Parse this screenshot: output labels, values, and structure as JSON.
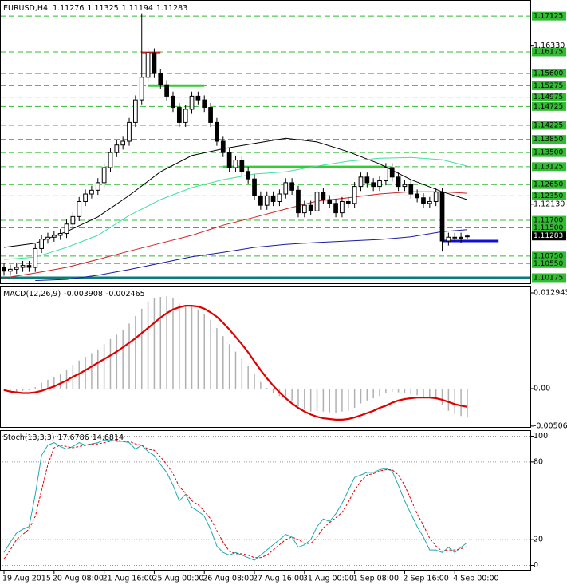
{
  "chart_data": [
    {
      "type": "candlestick",
      "title": "EURUSD,H4",
      "xlim": [
        -0.64,
        84.2
      ],
      "ylim": [
        1.1009,
        1.1751
      ],
      "candles": {
        "open": [
          1.1045,
          1.1035,
          1.104,
          1.1045,
          1.105,
          1.1045,
          1.1095,
          1.112,
          1.1125,
          1.113,
          1.1135,
          1.116,
          1.118,
          1.122,
          1.124,
          1.125,
          1.127,
          1.131,
          1.135,
          1.137,
          1.138,
          1.143,
          1.149,
          1.155,
          1.1615,
          1.156,
          1.153,
          1.15,
          1.147,
          1.143,
          1.1465,
          1.15,
          1.149,
          1.147,
          1.143,
          1.138,
          1.135,
          1.131,
          1.133,
          1.13,
          1.128,
          1.1235,
          1.121,
          1.1235,
          1.122,
          1.124,
          1.127,
          1.125,
          1.119,
          1.121,
          1.1195,
          1.1245,
          1.1225,
          1.1215,
          1.119,
          1.122,
          1.1215,
          1.126,
          1.1285,
          1.127,
          1.126,
          1.1275,
          1.131,
          1.1285,
          1.126,
          1.1265,
          1.124,
          1.123,
          1.1215,
          1.122,
          1.1245,
          1.1115,
          1.1125,
          1.1125,
          1.11276
        ],
        "high": [
          1.1057,
          1.1052,
          1.1057,
          1.1062,
          1.1062,
          1.1107,
          1.1132,
          1.1137,
          1.1142,
          1.1147,
          1.1172,
          1.1192,
          1.1232,
          1.1252,
          1.1262,
          1.1282,
          1.1322,
          1.1362,
          1.1382,
          1.1392,
          1.1442,
          1.1502,
          1.172,
          1.1627,
          1.1627,
          1.1572,
          1.1542,
          1.1512,
          1.1482,
          1.1477,
          1.1512,
          1.1512,
          1.1502,
          1.1482,
          1.1442,
          1.1392,
          1.1362,
          1.1342,
          1.1342,
          1.1312,
          1.1292,
          1.1247,
          1.1247,
          1.1247,
          1.1252,
          1.1282,
          1.1282,
          1.1262,
          1.1222,
          1.1222,
          1.1257,
          1.1257,
          1.1237,
          1.1227,
          1.1232,
          1.1232,
          1.1272,
          1.1297,
          1.1297,
          1.1282,
          1.1287,
          1.1322,
          1.1322,
          1.1297,
          1.1277,
          1.1277,
          1.1252,
          1.1242,
          1.1232,
          1.1257,
          1.1257,
          1.1137,
          1.1137,
          1.1137,
          1.11325
        ],
        "low": [
          1.1023,
          1.1023,
          1.1028,
          1.1033,
          1.1033,
          1.1033,
          1.1083,
          1.1108,
          1.1113,
          1.1118,
          1.1123,
          1.1148,
          1.1168,
          1.1208,
          1.1228,
          1.1238,
          1.1258,
          1.1298,
          1.1338,
          1.1358,
          1.1368,
          1.1418,
          1.1478,
          1.1538,
          1.1548,
          1.1518,
          1.1488,
          1.1458,
          1.1418,
          1.1418,
          1.1453,
          1.1478,
          1.1458,
          1.1418,
          1.1368,
          1.1338,
          1.1298,
          1.1298,
          1.1288,
          1.1268,
          1.1223,
          1.1198,
          1.1198,
          1.1208,
          1.1208,
          1.1228,
          1.1238,
          1.1178,
          1.1178,
          1.1183,
          1.1183,
          1.1213,
          1.1203,
          1.1178,
          1.1178,
          1.1203,
          1.1203,
          1.1248,
          1.1258,
          1.1248,
          1.1248,
          1.1263,
          1.1273,
          1.1248,
          1.1248,
          1.1228,
          1.1218,
          1.1203,
          1.1203,
          1.1208,
          1.1087,
          1.1103,
          1.1113,
          1.111,
          1.11194
        ],
        "close": [
          1.1035,
          1.104,
          1.1045,
          1.105,
          1.1045,
          1.1095,
          1.112,
          1.1125,
          1.113,
          1.1135,
          1.116,
          1.118,
          1.122,
          1.124,
          1.125,
          1.127,
          1.131,
          1.135,
          1.137,
          1.138,
          1.143,
          1.149,
          1.155,
          1.1615,
          1.156,
          1.153,
          1.15,
          1.147,
          1.143,
          1.1465,
          1.15,
          1.149,
          1.147,
          1.143,
          1.138,
          1.135,
          1.131,
          1.133,
          1.13,
          1.128,
          1.1235,
          1.121,
          1.1235,
          1.122,
          1.124,
          1.127,
          1.125,
          1.119,
          1.121,
          1.1195,
          1.1245,
          1.1225,
          1.1215,
          1.119,
          1.122,
          1.1215,
          1.126,
          1.1285,
          1.127,
          1.126,
          1.1275,
          1.131,
          1.1285,
          1.126,
          1.1265,
          1.124,
          1.123,
          1.1215,
          1.122,
          1.1245,
          1.1115,
          1.1125,
          1.1125,
          1.1122,
          1.11283
        ]
      },
      "up_color": "#ffffff",
      "down_color": "#000000",
      "ma_x": [
        0,
        5,
        10,
        15,
        20,
        25,
        30,
        35,
        40,
        45,
        50,
        55,
        60,
        65,
        70,
        74
      ],
      "series": [
        {
          "color": "#000000",
          "values": [
            1.1098,
            1.1109,
            1.114,
            1.1179,
            1.1236,
            1.1299,
            1.1342,
            1.136,
            1.1374,
            1.1388,
            1.1378,
            1.1352,
            1.132,
            1.1278,
            1.1246,
            1.1225
          ]
        },
        {
          "color": "#40e0a0",
          "values": [
            1.1066,
            1.1072,
            1.1098,
            1.113,
            1.1183,
            1.1225,
            1.1257,
            1.1278,
            1.1293,
            1.1299,
            1.1314,
            1.1327,
            1.1335,
            1.1337,
            1.1331,
            1.1314
          ]
        },
        {
          "color": "#cc2222",
          "values": [
            1.1017,
            1.103,
            1.1045,
            1.1066,
            1.1088,
            1.1109,
            1.113,
            1.1157,
            1.1178,
            1.12,
            1.1221,
            1.123,
            1.124,
            1.1246,
            1.1246,
            1.1242
          ]
        },
        {
          "color": "#1a1aa8",
          "values": [
            null,
            1.101,
            1.1013,
            1.1024,
            1.1039,
            1.1056,
            1.1073,
            1.1085,
            1.1098,
            1.1106,
            1.1111,
            1.1115,
            1.1119,
            1.1126,
            1.114,
            1.1145
          ]
        }
      ],
      "yticks": [
        {
          "value": 1.1633,
          "label": "1.16330"
        },
        {
          "value": 1.1213,
          "label": "1.12130"
        }
      ],
      "hlines": [
        1.17125,
        1.16175,
        {
          "value": 1.156,
          "label": "1.15600"
        },
        1.15275,
        1.14975,
        1.14725,
        1.14225,
        {
          "value": 1.1385,
          "label": "1.13850"
        },
        {
          "value": 1.135,
          "label": "1.13500"
        },
        1.13125,
        {
          "value": 1.1265,
          "label": "1.12650"
        },
        {
          "value": 1.1235,
          "label": "1.12350"
        },
        {
          "value": 1.117,
          "label": "1.11700"
        },
        {
          "value": 1.115,
          "label": "1.11500"
        },
        {
          "value": 1.1075,
          "label": "1.10750"
        },
        {
          "value": 1.1055,
          "label": "1.10550"
        },
        1.10175
      ],
      "hline_color": "#33bb33",
      "levels": [
        {
          "value": 1.10175,
          "color": "#0a7a7a",
          "start": -1,
          "end": 85
        },
        {
          "value": 1.1615,
          "color": "#e02020",
          "start": 22,
          "end": 25
        },
        {
          "value": 1.1528,
          "color": "#33cc33",
          "start": 23,
          "end": 32
        },
        {
          "value": 1.1312,
          "color": "#33cc33",
          "start": 35,
          "end": 61
        },
        {
          "value": 1.1115,
          "color": "#1010d0",
          "start": 70,
          "end": 79
        }
      ],
      "xticks": [
        {
          "value": 0,
          "label": "19 Aug 2015"
        },
        {
          "value": 8,
          "label": "20 Aug 08:00"
        },
        {
          "value": 16,
          "label": "21 Aug 16:00"
        },
        {
          "value": 24,
          "label": "25 Aug 00:00"
        },
        {
          "value": 32,
          "label": "26 Aug 08:00"
        },
        {
          "value": 40,
          "label": "27 Aug 16:00"
        },
        {
          "value": 48,
          "label": "31 Aug 00:00"
        },
        {
          "value": 56,
          "label": "1 Sep 08:00"
        },
        {
          "value": 64,
          "label": "2 Sep 16:00"
        },
        {
          "value": 72,
          "label": "4 Sep 00:00"
        }
      ]
    },
    {
      "type": "macd",
      "title": "MACD(12,26,9)",
      "ylim": [
        -0.00518,
        0.01348
      ],
      "yticks": [
        0.012943,
        {
          "value": 0,
          "label": "0.00"
        },
        -0.00506
      ],
      "series": [
        {
          "color": "#b0b0b0",
          "values": [
            -0.0003,
            -0.0004,
            -0.0004,
            -0.0003,
            -0.0002,
            0.0002,
            0.0008,
            0.0012,
            0.0016,
            0.002,
            0.0026,
            0.0032,
            0.0038,
            0.0043,
            0.0048,
            0.0053,
            0.006,
            0.0067,
            0.0073,
            0.0079,
            0.0088,
            0.0098,
            0.0108,
            0.0118,
            0.0122,
            0.0124,
            0.0125,
            0.0122,
            0.0115,
            0.0113,
            0.0111,
            0.0107,
            0.0101,
            0.0093,
            0.0082,
            0.0071,
            0.006,
            0.005,
            0.0041,
            0.0031,
            0.002,
            0.0009,
            0.0001,
            -0.0006,
            -0.001,
            -0.0012,
            -0.0016,
            -0.0024,
            -0.0028,
            -0.0031,
            -0.003,
            -0.0031,
            -0.0032,
            -0.0033,
            -0.0031,
            -0.003,
            -0.0026,
            -0.002,
            -0.0016,
            -0.0013,
            -0.001,
            -0.0006,
            -0.0004,
            -0.0005,
            -0.0006,
            -0.0008,
            -0.0009,
            -0.0011,
            -0.0012,
            -0.0011,
            -0.0022,
            -0.003,
            -0.0034,
            -0.0037,
            -0.003908
          ]
        },
        {
          "color": "#e00000",
          "values": [
            -0.0002,
            -0.0004,
            -0.0005,
            -0.0006,
            -0.0006,
            -0.0005,
            -0.0003,
            0,
            0.0003,
            0.0007,
            0.0011,
            0.0016,
            0.002,
            0.0025,
            0.003,
            0.0035,
            0.004,
            0.0045,
            0.005,
            0.0056,
            0.0062,
            0.0068,
            0.0075,
            0.0082,
            0.0089,
            0.0096,
            0.0102,
            0.0107,
            0.011,
            0.0112,
            0.0112,
            0.0111,
            0.0108,
            0.0103,
            0.0097,
            0.0089,
            0.008,
            0.007,
            0.006,
            0.0049,
            0.0037,
            0.0025,
            0.0014,
            0.0004,
            -0.0005,
            -0.0013,
            -0.002,
            -0.0026,
            -0.0031,
            -0.0035,
            -0.0038,
            -0.004,
            -0.0041,
            -0.0042,
            -0.0042,
            -0.0041,
            -0.0039,
            -0.0036,
            -0.0033,
            -0.003,
            -0.0026,
            -0.0023,
            -0.0019,
            -0.0016,
            -0.0014,
            -0.0013,
            -0.0012,
            -0.0012,
            -0.0012,
            -0.0013,
            -0.0015,
            -0.0018,
            -0.0021,
            -0.0023,
            -0.002465
          ]
        }
      ]
    },
    {
      "type": "stochastic",
      "title": "Stoch(13,3,3)",
      "ylim": [
        -4,
        104
      ],
      "yticks": [
        0,
        20,
        80,
        100
      ],
      "series": [
        {
          "color": "#20a8b0",
          "values": [
            10,
            18,
            25,
            28,
            30,
            55,
            85,
            93,
            95,
            92,
            90,
            92,
            95,
            93,
            94,
            95,
            97,
            97,
            96,
            96,
            95,
            90,
            93,
            88,
            85,
            78,
            72,
            62,
            50,
            55,
            45,
            42,
            38,
            28,
            15,
            10,
            8,
            10,
            8,
            6,
            4,
            8,
            12,
            16,
            20,
            24,
            22,
            14,
            16,
            20,
            30,
            36,
            34,
            40,
            48,
            58,
            68,
            70,
            72,
            72,
            74,
            75,
            73,
            62,
            50,
            40,
            30,
            22,
            12,
            12,
            10,
            14,
            10,
            14,
            17.6786
          ]
        },
        {
          "color": "#e00000",
          "values": [
            5,
            12,
            20,
            24,
            28,
            38,
            58,
            78,
            91,
            93,
            92,
            91,
            92,
            93,
            94,
            94,
            95,
            96,
            97,
            96,
            96,
            94,
            93,
            90,
            89,
            84,
            78,
            71,
            61,
            56,
            50,
            47,
            42,
            36,
            27,
            18,
            11,
            9,
            9,
            8,
            6,
            6,
            8,
            12,
            16,
            20,
            22,
            20,
            17,
            17,
            22,
            29,
            33,
            37,
            41,
            49,
            58,
            65,
            70,
            71,
            73,
            74,
            74,
            70,
            62,
            51,
            40,
            31,
            21,
            15,
            11,
            12,
            12,
            13,
            14.6814
          ]
        }
      ]
    }
  ]
}
